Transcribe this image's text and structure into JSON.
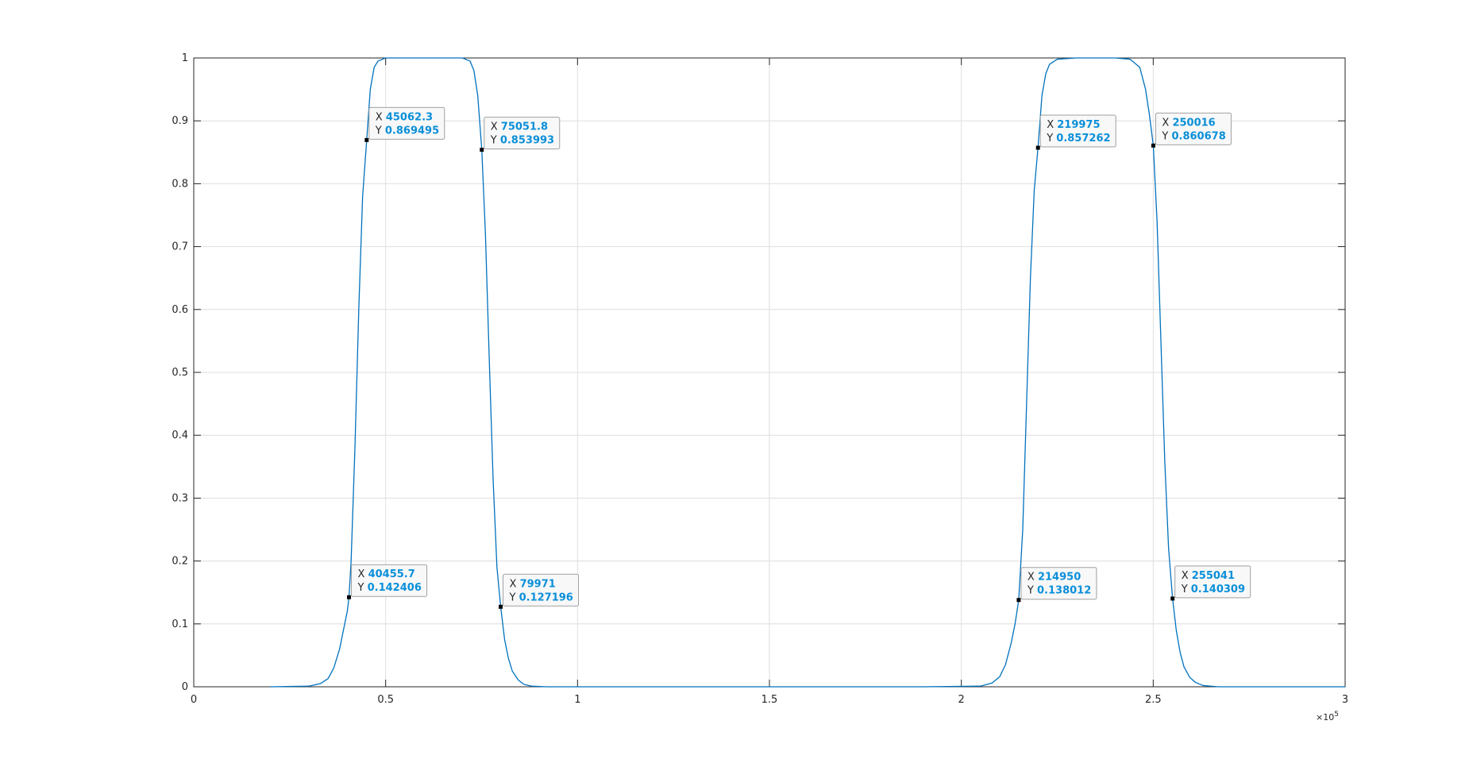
{
  "chart_data": {
    "type": "line",
    "title": "",
    "xlabel": "",
    "ylabel": "",
    "xlim": [
      0,
      300000
    ],
    "ylim": [
      0,
      1
    ],
    "grid": true,
    "x_exponent_label": "×10",
    "x_exponent_power": "5",
    "x_ticks": [
      0,
      0.5,
      1,
      1.5,
      2,
      2.5,
      3
    ],
    "x_tick_labels": [
      "0",
      "0.5",
      "1",
      "1.5",
      "2",
      "2.5",
      "3"
    ],
    "y_ticks": [
      0,
      0.1,
      0.2,
      0.3,
      0.4,
      0.5,
      0.6,
      0.7,
      0.8,
      0.9,
      1
    ],
    "y_tick_labels": [
      "0",
      "0.1",
      "0.2",
      "0.3",
      "0.4",
      "0.5",
      "0.6",
      "0.7",
      "0.8",
      "0.9",
      "1"
    ],
    "line_color": "#0072bd",
    "series": [
      {
        "x": [
          20000,
          30000,
          33000,
          35000,
          36500,
          38000,
          39000,
          40000,
          40456,
          41000,
          42000,
          43000,
          44000,
          45062,
          46000,
          47000,
          48000,
          50000,
          55000,
          60000,
          65000,
          70000,
          72000,
          73000,
          74000,
          75052,
          76000,
          77000,
          78000,
          79000,
          79971,
          81000,
          82000,
          83000,
          84500,
          86000,
          88000,
          92000,
          105000,
          190000,
          205000,
          208000,
          210000,
          211500,
          213000,
          214000,
          214950,
          216000,
          217000,
          218000,
          219000,
          219975,
          221000,
          222000,
          223000,
          225000,
          230000,
          235000,
          240000,
          244000,
          246500,
          248000,
          249000,
          250016,
          251000,
          252000,
          253000,
          254000,
          255041,
          256000,
          257000,
          258000,
          259500,
          261000,
          263000,
          267000,
          277000,
          300000
        ],
        "y": [
          0,
          0.001,
          0.005,
          0.013,
          0.03,
          0.06,
          0.09,
          0.12,
          0.142406,
          0.2,
          0.38,
          0.6,
          0.78,
          0.869495,
          0.95,
          0.985,
          0.995,
          1,
          1,
          1,
          1,
          1,
          0.995,
          0.98,
          0.94,
          0.853993,
          0.72,
          0.52,
          0.33,
          0.19,
          0.127196,
          0.075,
          0.045,
          0.025,
          0.011,
          0.004,
          0.001,
          0,
          0,
          0,
          0.001,
          0.006,
          0.016,
          0.035,
          0.07,
          0.1,
          0.138012,
          0.25,
          0.45,
          0.65,
          0.79,
          0.857262,
          0.94,
          0.975,
          0.99,
          0.998,
          1,
          1,
          1,
          0.998,
          0.985,
          0.95,
          0.91,
          0.860678,
          0.74,
          0.55,
          0.36,
          0.22,
          0.140309,
          0.09,
          0.055,
          0.032,
          0.015,
          0.007,
          0.002,
          0,
          0,
          0
        ]
      }
    ],
    "datatips": [
      {
        "x_label": "X",
        "x_value": "45062.3",
        "y_label": "Y",
        "y_value": "0.869495",
        "x": 45062.3,
        "y": 0.869495
      },
      {
        "x_label": "X",
        "x_value": "75051.8",
        "y_label": "Y",
        "y_value": "0.853993",
        "x": 75051.8,
        "y": 0.853993
      },
      {
        "x_label": "X",
        "x_value": "40455.7",
        "y_label": "Y",
        "y_value": "0.142406",
        "x": 40455.7,
        "y": 0.142406
      },
      {
        "x_label": "X",
        "x_value": "79971",
        "y_label": "Y",
        "y_value": "0.127196",
        "x": 79971,
        "y": 0.127196
      },
      {
        "x_label": "X",
        "x_value": "219975",
        "y_label": "Y",
        "y_value": "0.857262",
        "x": 219975,
        "y": 0.857262
      },
      {
        "x_label": "X",
        "x_value": "250016",
        "y_label": "Y",
        "y_value": "0.860678",
        "x": 250016,
        "y": 0.860678
      },
      {
        "x_label": "X",
        "x_value": "214950",
        "y_label": "Y",
        "y_value": "0.138012",
        "x": 214950,
        "y": 0.138012
      },
      {
        "x_label": "X",
        "x_value": "255041",
        "y_label": "Y",
        "y_value": "0.140309",
        "x": 255041,
        "y": 0.140309
      }
    ]
  }
}
